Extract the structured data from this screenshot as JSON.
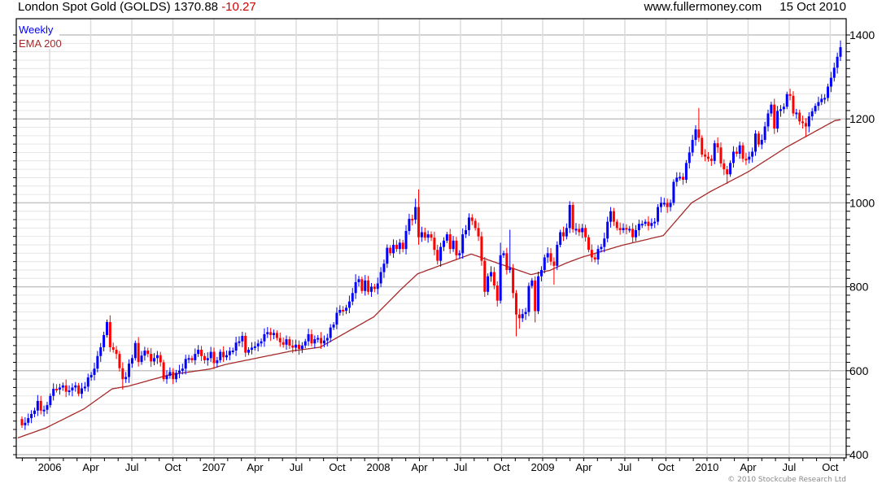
{
  "header": {
    "instrument": "London Spot Gold (GOLDS)",
    "last": "1370.88",
    "change": "-10.27",
    "site": "www.fullermoney.com",
    "date": "15 Oct 2010"
  },
  "footer": {
    "copyright": "© 2010 Stockcube Research Ltd"
  },
  "chart_data": {
    "type": "candlestick",
    "title": "London Spot Gold (GOLDS) 1370.88 -10.27",
    "legend": [
      {
        "label": "Weekly",
        "color": "#0000ff"
      },
      {
        "label": "EMA 200",
        "color": "#a52a2a"
      }
    ],
    "legend_placement": "top-left",
    "colors": {
      "up": "#0000ff",
      "down": "#ff0000",
      "ema": "#a52a2a"
    },
    "ylim": [
      400,
      1400
    ],
    "y_ticks": [
      400,
      600,
      800,
      1000,
      1200,
      1400
    ],
    "y_minor_step": 20,
    "grid": true,
    "x_tick_labels": [
      "2006",
      "Apr",
      "Jul",
      "Oct",
      "2007",
      "Apr",
      "Jul",
      "Oct",
      "2008",
      "Apr",
      "Jul",
      "Oct",
      "2009",
      "Apr",
      "Jul",
      "Oct",
      "2010",
      "Apr",
      "Jul",
      "Oct"
    ],
    "first_open": 485,
    "closes": [
      470,
      476,
      487,
      497,
      505,
      528,
      505,
      507,
      518,
      540,
      557,
      555,
      560,
      565,
      550,
      553,
      560,
      565,
      545,
      558,
      562,
      584,
      590,
      605,
      635,
      656,
      685,
      716,
      656,
      650,
      640,
      606,
      580,
      585,
      617,
      630,
      666,
      621,
      636,
      648,
      640,
      622,
      630,
      637,
      620,
      580,
      588,
      597,
      580,
      595,
      600,
      605,
      628,
      630,
      625,
      640,
      650,
      635,
      625,
      630,
      645,
      618,
      625,
      645,
      632,
      637,
      647,
      648,
      667,
      670,
      683,
      643,
      650,
      655,
      658,
      665,
      670,
      687,
      692,
      685,
      690,
      678,
      668,
      662,
      675,
      660,
      655,
      662,
      652,
      660,
      670,
      687,
      665,
      675,
      678,
      665,
      672,
      678,
      703,
      710,
      738,
      745,
      743,
      750,
      765,
      785,
      811,
      818,
      790,
      815,
      788,
      800,
      795,
      808,
      835,
      855,
      893,
      880,
      900,
      890,
      905,
      890,
      933,
      962,
      960,
      990,
      918,
      930,
      917,
      925,
      917,
      888,
      862,
      895,
      910,
      925,
      890,
      910,
      875,
      880,
      925,
      935,
      965,
      957,
      940,
      920,
      862,
      788,
      825,
      835,
      803,
      767,
      875,
      880,
      840,
      845,
      785,
      734,
      725,
      735,
      740,
      802,
      815,
      742,
      825,
      840,
      870,
      880,
      860,
      850,
      900,
      930,
      920,
      940,
      995,
      937,
      938,
      930,
      940,
      918,
      888,
      870,
      865,
      890,
      895,
      915,
      955,
      980,
      955,
      940,
      935,
      940,
      937,
      938,
      918,
      935,
      950,
      950,
      955,
      945,
      952,
      955,
      990,
      1000,
      1000,
      990,
      1000,
      1050,
      1060,
      1062,
      1055,
      1095,
      1120,
      1150,
      1175,
      1155,
      1115,
      1110,
      1105,
      1100,
      1142,
      1132,
      1094,
      1080,
      1068,
      1095,
      1122,
      1117,
      1137,
      1105,
      1103,
      1110,
      1122,
      1165,
      1139,
      1150,
      1182,
      1213,
      1234,
      1177,
      1219,
      1223,
      1229,
      1259,
      1255,
      1213,
      1215,
      1194,
      1190,
      1182,
      1206,
      1218,
      1231,
      1240,
      1248,
      1250,
      1277,
      1298,
      1322,
      1348,
      1371
    ],
    "wick_extremes": [
      {
        "week": 28,
        "high": 732
      },
      {
        "week": 32,
        "low": 555
      },
      {
        "week": 37,
        "high": 680
      },
      {
        "week": 106,
        "high": 830
      },
      {
        "week": 125,
        "high": 1010
      },
      {
        "week": 126,
        "high": 1032,
        "low": 900
      },
      {
        "week": 146,
        "low": 850
      },
      {
        "week": 152,
        "high": 905,
        "low": 760
      },
      {
        "week": 155,
        "high": 936
      },
      {
        "week": 157,
        "low": 682
      },
      {
        "week": 158,
        "low": 700
      },
      {
        "week": 163,
        "high": 825,
        "low": 715
      },
      {
        "week": 169,
        "low": 805
      },
      {
        "week": 215,
        "high": 1226
      },
      {
        "week": 224,
        "low": 1045
      },
      {
        "week": 249,
        "low": 1157
      },
      {
        "week": 260,
        "high": 1387
      }
    ],
    "ema200": [
      [
        0,
        440
      ],
      [
        9,
        464
      ],
      [
        21,
        509
      ],
      [
        30,
        557
      ],
      [
        35,
        563
      ],
      [
        48,
        590
      ],
      [
        61,
        604
      ],
      [
        66,
        615
      ],
      [
        87,
        647
      ],
      [
        96,
        656
      ],
      [
        113,
        728
      ],
      [
        122,
        796
      ],
      [
        127,
        831
      ],
      [
        144,
        878
      ],
      [
        163,
        829
      ],
      [
        169,
        839
      ],
      [
        174,
        856
      ],
      [
        179,
        870
      ],
      [
        192,
        899
      ],
      [
        205,
        922
      ],
      [
        214,
        1000
      ],
      [
        220,
        1027
      ],
      [
        232,
        1074
      ],
      [
        244,
        1132
      ],
      [
        260,
        1198
      ]
    ]
  }
}
